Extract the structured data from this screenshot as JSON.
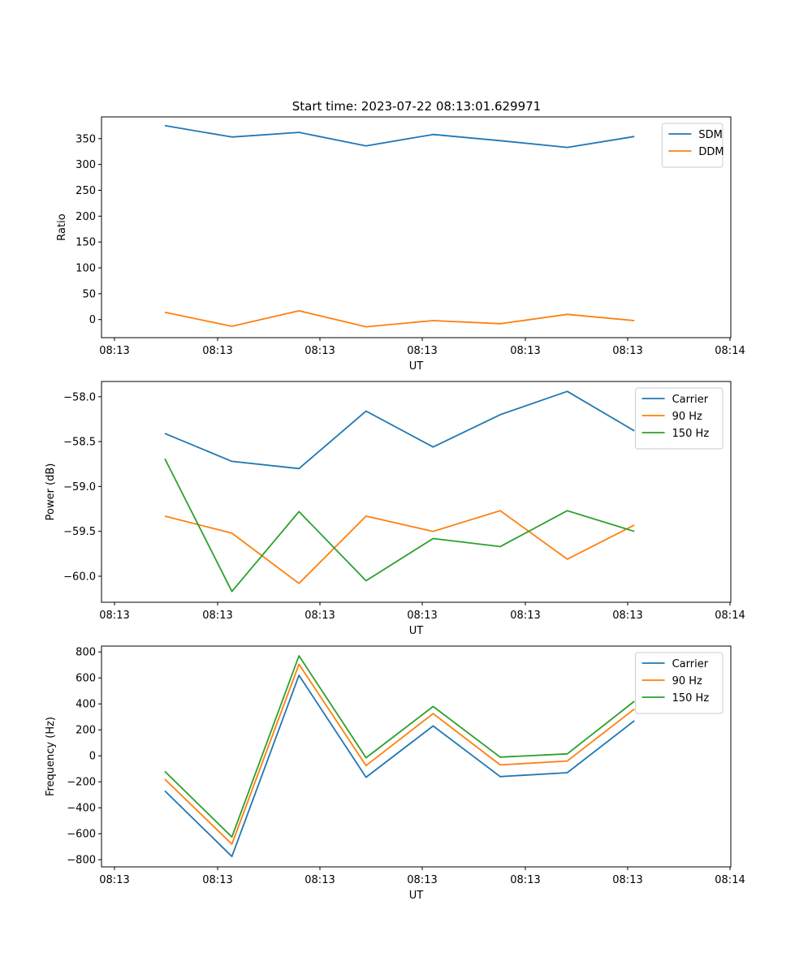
{
  "figure_title": "Start time: 2023-07-22 08:13:01.629971",
  "colors": {
    "blue": "#1f77b4",
    "orange": "#ff7f0e",
    "green": "#2ca02c"
  },
  "chart_data": [
    {
      "type": "line",
      "title": "Start time: 2023-07-22 08:13:01.629971",
      "xlabel": "UT",
      "ylabel": "Ratio",
      "x_tick_labels": [
        "08:13",
        "08:13",
        "08:13",
        "08:13",
        "08:13",
        "08:13",
        "08:14"
      ],
      "x_index": [
        1,
        2,
        3,
        4,
        5,
        6,
        7,
        8
      ],
      "ylim": [
        -35,
        392
      ],
      "y_ticks": [
        0,
        50,
        100,
        150,
        200,
        250,
        300,
        350
      ],
      "y_tick_labels": [
        "0",
        "50",
        "100",
        "150",
        "200",
        "250",
        "300",
        "350"
      ],
      "legend_position": "top-right",
      "grid": false,
      "series": [
        {
          "name": "SDM",
          "color": "#1f77b4",
          "values": [
            375,
            353,
            362,
            336,
            358,
            346,
            333,
            354
          ]
        },
        {
          "name": "DDM",
          "color": "#ff7f0e",
          "values": [
            14,
            -13,
            17,
            -14,
            -2,
            -8,
            10,
            -2
          ]
        }
      ]
    },
    {
      "type": "line",
      "title": "",
      "xlabel": "UT",
      "ylabel": "Power (dB)",
      "x_tick_labels": [
        "08:13",
        "08:13",
        "08:13",
        "08:13",
        "08:13",
        "08:13",
        "08:14"
      ],
      "x_index": [
        1,
        2,
        3,
        4,
        5,
        6,
        7,
        8
      ],
      "ylim": [
        -60.29,
        -57.83
      ],
      "y_ticks": [
        -60.0,
        -59.5,
        -59.0,
        -58.5,
        -58.0
      ],
      "y_tick_labels": [
        "−60.0",
        "−59.5",
        "−59.0",
        "−58.5",
        "−58.0"
      ],
      "legend_position": "top-right",
      "grid": false,
      "series": [
        {
          "name": "Carrier",
          "color": "#1f77b4",
          "values": [
            -58.41,
            -58.72,
            -58.8,
            -58.16,
            -58.56,
            -58.2,
            -57.94,
            -58.38
          ]
        },
        {
          "name": "90 Hz",
          "color": "#ff7f0e",
          "values": [
            -59.33,
            -59.52,
            -60.08,
            -59.33,
            -59.5,
            -59.27,
            -59.81,
            -59.43
          ]
        },
        {
          "name": "150 Hz",
          "color": "#2ca02c",
          "values": [
            -58.69,
            -60.17,
            -59.28,
            -60.05,
            -59.58,
            -59.67,
            -59.27,
            -59.5
          ]
        }
      ]
    },
    {
      "type": "line",
      "title": "",
      "xlabel": "UT",
      "ylabel": "Frequency (Hz)",
      "x_tick_labels": [
        "08:13",
        "08:13",
        "08:13",
        "08:13",
        "08:13",
        "08:13",
        "08:14"
      ],
      "x_index": [
        1,
        2,
        3,
        4,
        5,
        6,
        7,
        8
      ],
      "ylim": [
        -855,
        845
      ],
      "y_ticks": [
        -800,
        -600,
        -400,
        -200,
        0,
        200,
        400,
        600,
        800
      ],
      "y_tick_labels": [
        "−800",
        "−600",
        "−400",
        "−200",
        "0",
        "200",
        "400",
        "600",
        "800"
      ],
      "legend_position": "top-right",
      "grid": false,
      "series": [
        {
          "name": "Carrier",
          "color": "#1f77b4",
          "values": [
            -270,
            -775,
            620,
            -165,
            230,
            -160,
            -130,
            270
          ]
        },
        {
          "name": "90 Hz",
          "color": "#ff7f0e",
          "values": [
            -180,
            -680,
            705,
            -75,
            325,
            -70,
            -40,
            360
          ]
        },
        {
          "name": "150 Hz",
          "color": "#2ca02c",
          "values": [
            -120,
            -625,
            770,
            -15,
            380,
            -10,
            15,
            420
          ]
        }
      ]
    }
  ]
}
